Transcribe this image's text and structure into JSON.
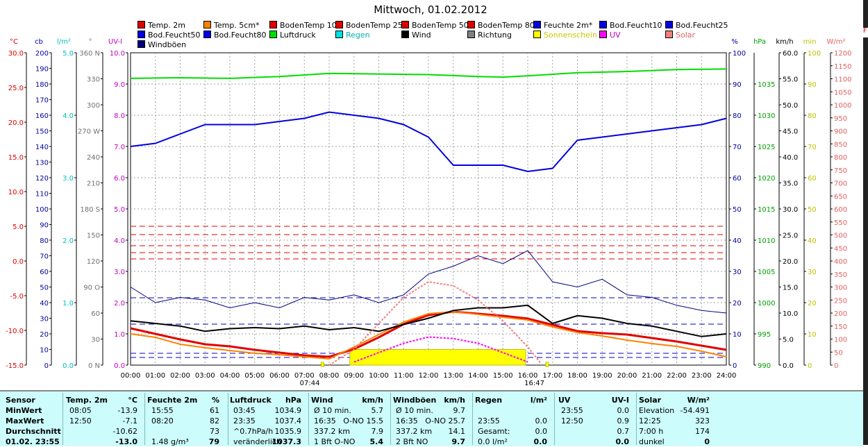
{
  "title": "Mittwoch, 01.02.2012",
  "legend": [
    {
      "label": "Temp. 2m",
      "color": "#e00000",
      "row": 0,
      "col": 0
    },
    {
      "label": "Temp. 5cm*",
      "color": "#ff8000",
      "row": 0,
      "col": 1
    },
    {
      "label": "BodenTemp 10",
      "color": "#e00000",
      "row": 0,
      "col": 2
    },
    {
      "label": "BodenTemp 25",
      "color": "#e00000",
      "row": 0,
      "col": 3
    },
    {
      "label": "BodenTemp 50",
      "color": "#e00000",
      "row": 0,
      "col": 4
    },
    {
      "label": "BodenTemp 80",
      "color": "#e00000",
      "row": 0,
      "col": 5
    },
    {
      "label": "Feuchte 2m*",
      "color": "#0000e0",
      "row": 0,
      "col": 6
    },
    {
      "label": "Bod.Feucht10",
      "color": "#0000e0",
      "row": 0,
      "col": 7
    },
    {
      "label": "Bod.Feucht25",
      "color": "#0000e0",
      "row": 0,
      "col": 8
    },
    {
      "label": "Bod.Feucht50",
      "color": "#0000e0",
      "row": 1,
      "col": 0
    },
    {
      "label": "Bod.Feucht80",
      "color": "#0000e0",
      "row": 1,
      "col": 1
    },
    {
      "label": "Luftdruck",
      "color": "#00dd00",
      "row": 1,
      "col": 2
    },
    {
      "label": "Regen",
      "color": "#00e0e0",
      "row": 1,
      "col": 3
    },
    {
      "label": "Wind",
      "color": "#000000",
      "row": 1,
      "col": 4
    },
    {
      "label": "Richtung",
      "color": "#808080",
      "row": 1,
      "col": 5
    },
    {
      "label": "Sonnenschein",
      "color": "#ffff00",
      "row": 1,
      "col": 6
    },
    {
      "label": "UV",
      "color": "#ff00ff",
      "row": 1,
      "col": 7
    },
    {
      "label": "Solar",
      "color": "#f08080",
      "row": 1,
      "col": 8
    },
    {
      "label": "Windböen",
      "color": "#000080",
      "row": 2,
      "col": 0
    }
  ],
  "chart_data": {
    "type": "line",
    "title": "Mittwoch, 01.02.2012",
    "x_ticks": [
      "00:00",
      "01:00",
      "02:00",
      "03:00",
      "04:00",
      "05:00",
      "06:00",
      "07:00",
      "08:00",
      "09:00",
      "10:00",
      "11:00",
      "12:00",
      "13:00",
      "14:00",
      "15:00",
      "16:00",
      "17:00",
      "18:00",
      "19:00",
      "20:00",
      "21:00",
      "22:00",
      "23:00",
      "24:00"
    ],
    "x_range_hours": [
      0,
      24
    ],
    "sunrise": "07:44",
    "sunset": "16:47",
    "grid": true,
    "legend_position": "top",
    "left_axes": [
      {
        "unit": "°C",
        "color": "#e00000",
        "range": [
          -15,
          30
        ],
        "ticks": [
          "30.0",
          "25.0",
          "20.0",
          "15.0",
          "10.0",
          "5.0",
          "0.0",
          "-5.0",
          "-10.0",
          "-15.0"
        ]
      },
      {
        "unit": "cb",
        "color": "#0000a0",
        "range": [
          0,
          200
        ],
        "ticks": [
          "200",
          "190",
          "180",
          "170",
          "160",
          "150",
          "140",
          "130",
          "120",
          "110",
          "100",
          "90",
          "80",
          "70",
          "60",
          "50",
          "40",
          "30",
          "20",
          "10",
          "0"
        ]
      },
      {
        "unit": "l/m²",
        "color": "#00c0c0",
        "range": [
          0,
          5
        ],
        "ticks": [
          "5.0",
          "4.0",
          "3.0",
          "2.0",
          "1.0",
          "0.0"
        ]
      },
      {
        "unit": "°",
        "color": "#707070",
        "range": [
          0,
          360
        ],
        "ticks": [
          "360 N",
          "330",
          "300",
          "270 W",
          "240",
          "210",
          "180 S",
          "150",
          "120",
          "90  O",
          "60",
          "30",
          "0  N"
        ]
      },
      {
        "unit": "UV-I",
        "color": "#c000c0",
        "range": [
          0,
          10
        ],
        "ticks": [
          "10.0",
          "9.0",
          "8.0",
          "7.0",
          "6.0",
          "5.0",
          "4.0",
          "3.0",
          "2.0",
          "1.0",
          "0.0"
        ]
      }
    ],
    "right_axes": [
      {
        "unit": "%",
        "color": "#0000a0",
        "range": [
          0,
          100
        ],
        "ticks": [
          "100",
          "90",
          "80",
          "70",
          "60",
          "50",
          "40",
          "30",
          "20",
          "10",
          "0"
        ]
      },
      {
        "unit": "hPa",
        "color": "#00a000",
        "range": [
          990,
          1040
        ],
        "ticks": [
          "1035",
          "1030",
          "1025",
          "1020",
          "1015",
          "1010",
          "1005",
          "1000",
          "995",
          "990"
        ]
      },
      {
        "unit": "km/h",
        "color": "#000000",
        "range": [
          0,
          60
        ],
        "ticks": [
          "60.0",
          "55.0",
          "50.0",
          "45.0",
          "40.0",
          "35.0",
          "30.0",
          "25.0",
          "20.0",
          "15.0",
          "10.0",
          "5.0",
          "0.0"
        ]
      },
      {
        "unit": "min",
        "color": "#c0c000",
        "range": [
          0,
          100
        ],
        "ticks": [
          "100",
          "90",
          "80",
          "70",
          "60",
          "50",
          "40",
          "30",
          "20",
          "10",
          "0"
        ]
      },
      {
        "unit": "W/m²",
        "color": "#e06060",
        "range": [
          0,
          1200
        ],
        "ticks": [
          "1200",
          "1150",
          "1100",
          "1050",
          "1000",
          "950",
          "900",
          "850",
          "800",
          "750",
          "700",
          "650",
          "600",
          "550",
          "500",
          "450",
          "400",
          "350",
          "300",
          "250",
          "200",
          "150",
          "100",
          "50",
          "0"
        ]
      }
    ],
    "series": [
      {
        "name": "Temp. 2m",
        "color": "#e00000",
        "axis": "°C",
        "x": [
          0,
          1,
          2,
          3,
          4,
          5,
          6,
          7,
          8,
          9,
          10,
          11,
          12,
          13,
          14,
          15,
          16,
          17,
          18,
          19,
          20,
          21,
          22,
          23,
          24
        ],
        "y": [
          -9.7,
          -10.5,
          -11.3,
          -12.0,
          -12.3,
          -12.8,
          -13.2,
          -13.6,
          -13.8,
          -12.7,
          -11.0,
          -9.1,
          -7.8,
          -7.3,
          -7.6,
          -7.9,
          -8.3,
          -9.2,
          -10.1,
          -10.4,
          -10.6,
          -11.1,
          -11.6,
          -12.2,
          -12.8
        ]
      },
      {
        "name": "Temp. 5cm*",
        "color": "#ff8000",
        "axis": "°C",
        "x": [
          0,
          1,
          2,
          3,
          4,
          5,
          6,
          7,
          8,
          9,
          10,
          11,
          12,
          13,
          14,
          15,
          16,
          17,
          18,
          19,
          20,
          21,
          22,
          23,
          24
        ],
        "y": [
          -10.5,
          -11.0,
          -12.0,
          -12.5,
          -12.9,
          -13.3,
          -13.5,
          -13.8,
          -14.1,
          -12.4,
          -10.6,
          -8.8,
          -7.6,
          -7.3,
          -7.7,
          -8.1,
          -8.5,
          -9.5,
          -10.3,
          -10.8,
          -11.4,
          -11.9,
          -12.3,
          -13.0,
          -13.8
        ]
      },
      {
        "name": "Feuchte 2m*",
        "color": "#0000e0",
        "axis": "%",
        "x": [
          0,
          1,
          2,
          3,
          4,
          5,
          6,
          7,
          8,
          9,
          10,
          11,
          12,
          13,
          14,
          15,
          15.5,
          16,
          17,
          18,
          19,
          20,
          21,
          22,
          23,
          24
        ],
        "y": [
          70,
          71,
          74,
          77,
          77,
          77,
          78,
          79,
          81,
          80,
          79,
          77,
          73,
          64,
          64,
          64,
          63,
          62,
          63,
          72,
          73,
          74,
          75,
          76,
          77,
          79
        ]
      },
      {
        "name": "Luftdruck",
        "color": "#00dd00",
        "axis": "hPa",
        "x": [
          0,
          2,
          4,
          6,
          8,
          10,
          12,
          14,
          15,
          16,
          18,
          20,
          22,
          24
        ],
        "y": [
          1035.9,
          1036.0,
          1035.9,
          1036.2,
          1036.7,
          1036.6,
          1036.5,
          1036.2,
          1036.1,
          1036.3,
          1036.8,
          1037.0,
          1037.3,
          1037.4
        ]
      },
      {
        "name": "Wind",
        "color": "#000000",
        "axis": "km/h",
        "x": [
          0,
          1,
          2,
          3,
          4,
          5,
          6,
          7,
          8,
          9,
          10,
          11,
          12,
          13,
          14,
          15,
          16,
          17,
          18,
          19,
          20,
          21,
          22,
          23,
          24
        ],
        "y": [
          8.5,
          8.0,
          7.5,
          6.5,
          7.0,
          7.2,
          7.0,
          7.5,
          6.8,
          7.2,
          6.5,
          7.8,
          9.0,
          10.5,
          11.0,
          11.0,
          11.5,
          8.0,
          9.5,
          9.0,
          8.0,
          7.5,
          6.5,
          5.5,
          6.0
        ]
      },
      {
        "name": "Windböen",
        "color": "#000080",
        "axis": "km/h",
        "x": [
          0,
          1,
          2,
          3,
          4,
          5,
          6,
          7,
          8,
          9,
          10,
          11,
          12,
          13,
          14,
          15,
          16,
          17,
          18,
          19,
          20,
          21,
          22,
          23,
          24
        ],
        "y": [
          15.0,
          12.0,
          13.0,
          12.5,
          11.0,
          12.0,
          11.0,
          13.0,
          12.5,
          13.5,
          12.0,
          13.5,
          17.5,
          19.0,
          21.0,
          19.5,
          22.0,
          16.0,
          15.0,
          16.5,
          13.5,
          13.0,
          11.5,
          10.5,
          10.0
        ]
      },
      {
        "name": "Solar",
        "color": "#f08080",
        "axis": "W/m²",
        "x": [
          8,
          9,
          10,
          11,
          12,
          13,
          14,
          15,
          16,
          16.5
        ],
        "y": [
          0,
          60,
          160,
          260,
          320,
          305,
          250,
          170,
          70,
          10
        ]
      },
      {
        "name": "UV",
        "color": "#ff00ff",
        "axis": "UV-I",
        "x": [
          9,
          10,
          11,
          12,
          13,
          14,
          15,
          16
        ],
        "y": [
          0.1,
          0.4,
          0.7,
          0.9,
          0.85,
          0.7,
          0.4,
          0.1
        ]
      }
    ],
    "sunshine_band": {
      "label": "Sonnenschein",
      "from": "08:50",
      "to": "15:55",
      "value_min": 5
    }
  },
  "table": {
    "headers": [
      "Sensor",
      "Temp. 2m",
      "°C",
      "Feuchte 2m",
      "%",
      "Luftdruck",
      "hPa",
      "Wind",
      "km/h",
      "Windböen",
      "km/h",
      "Regen",
      "l/m²",
      "UV",
      "UV-I",
      "Solar",
      "W/m²"
    ],
    "rows": [
      {
        "label": "MinWert",
        "temp_t": "08:05",
        "temp_v": "-13.9",
        "hum_t": "15:55",
        "hum_v": "61",
        "pres_t": "03:45",
        "pres_v": "1034.9",
        "wind_t": "Ø 10 min.",
        "wind_v": "5.7",
        "gust_t": "Ø 10 min.",
        "gust_v": "9.7",
        "rain_t": "",
        "rain_v": "",
        "uv_t": "23:55",
        "uv_v": "0.0",
        "sol_t": "Elevation",
        "sol_v": "-54.491"
      },
      {
        "label": "MaxWert",
        "temp_t": "12:50",
        "temp_v": "-7.1",
        "hum_t": "08:20",
        "hum_v": "82",
        "pres_t": "23:35",
        "pres_v": "1037.4",
        "wind_t": "16:35",
        "wind_v": "O-NO 15.5",
        "gust_t": "16:35",
        "gust_v": "O-NO 25.7",
        "rain_t": "23:55",
        "rain_v": "0.0",
        "uv_t": "12:50",
        "uv_v": "0.9",
        "sol_t": "12:25",
        "sol_v": "323"
      },
      {
        "label": "Durchschnitt",
        "temp_t": "",
        "temp_v": "-10.62",
        "hum_t": "",
        "hum_v": "73",
        "pres_t": "^0.7hPa/h",
        "pres_v": "1035.9",
        "wind_t": "337.2 km",
        "wind_v": "7.9",
        "gust_t": "337.2 km",
        "gust_v": "14.1",
        "rain_t": "Gesamt:",
        "rain_v": "0.0",
        "uv_t": "",
        "uv_v": "0.7",
        "sol_t": "7:00 h",
        "sol_v": "174"
      },
      {
        "label": "01.02. 23:55",
        "temp_t": "",
        "temp_v": "-13.0",
        "hum_t": "1.48 g/m³",
        "hum_v": "79",
        "pres_t": "veränderlich",
        "pres_v": "1037.3",
        "wind_t": "1 Bft O-NO",
        "wind_v": "5.4",
        "gust_t": "2 Bft NO",
        "gust_v": "9.7",
        "rain_t": "0.0 l/m²",
        "rain_v": "0.0",
        "uv_t": "",
        "uv_v": "0.0",
        "sol_t": "dunkel",
        "sol_v": "0"
      }
    ]
  }
}
